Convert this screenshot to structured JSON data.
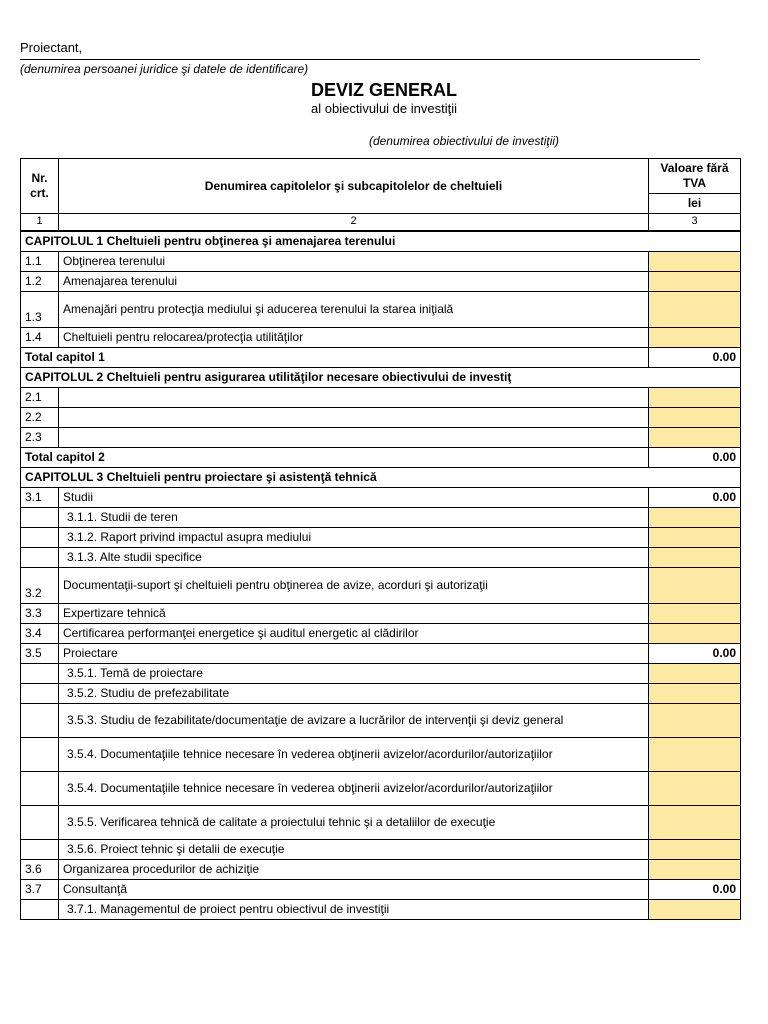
{
  "header": {
    "proiectant": "Proiectant,",
    "identLine": "(denumirea persoanei juridice şi datele de identificare)",
    "title": "DEVIZ GENERAL",
    "titleSub": "al obiectivului de investiţii",
    "objLine": "(denumirea obiectivului de investiţii)"
  },
  "colHeaders": {
    "nr": "Nr. crt.",
    "desc": "Denumirea capitolelor şi subcapitolelor de cheltuieli",
    "valTop": "Valoare fără TVA",
    "valUnit": "lei",
    "n1": "1",
    "n2": "2",
    "n3": "3"
  },
  "colors": {
    "highlight": "#fce9a4",
    "border": "#000000",
    "background": "#ffffff"
  },
  "rows": [
    {
      "type": "chapter",
      "span": "CAPITOLUL 1 Cheltuieli pentru obţinerea şi amenajarea terenului"
    },
    {
      "type": "item",
      "nr": "1.1",
      "desc": "Obţinerea terenului",
      "val": "",
      "yellow": true
    },
    {
      "type": "item",
      "nr": "1.2",
      "desc": "Amenajarea terenului",
      "val": "",
      "yellow": true
    },
    {
      "type": "item",
      "nr": "1.3",
      "desc": "Amenajări pentru protecţia mediului şi aducerea terenului la starea iniţială",
      "val": "",
      "yellow": true,
      "tall": true
    },
    {
      "type": "item",
      "nr": "1.4",
      "desc": "Cheltuieli pentru relocarea/protecţia utilităţilor",
      "val": "",
      "yellow": true
    },
    {
      "type": "total",
      "label": "Total capitol 1",
      "val": "0.00"
    },
    {
      "type": "chapter",
      "span": "CAPITOLUL 2 Cheltuieli pentru asigurarea utilităţilor necesare obiectivului de investiţ"
    },
    {
      "type": "item",
      "nr": "2.1",
      "desc": "",
      "val": "",
      "yellow": true
    },
    {
      "type": "item",
      "nr": "2.2",
      "desc": "",
      "val": "",
      "yellow": true
    },
    {
      "type": "item",
      "nr": "2.3",
      "desc": "",
      "val": "",
      "yellow": true
    },
    {
      "type": "total",
      "label": "Total capitol 2",
      "val": "0.00"
    },
    {
      "type": "chapter",
      "span": "CAPITOLUL 3 Cheltuieli pentru proiectare şi asistenţă tehnică"
    },
    {
      "type": "item",
      "nr": "3.1",
      "desc": "Studii",
      "val": "0.00",
      "valBold": true
    },
    {
      "type": "sub",
      "desc": "3.1.1. Studii de teren",
      "yellow": true
    },
    {
      "type": "sub",
      "desc": "3.1.2. Raport privind impactul asupra mediului",
      "yellow": true
    },
    {
      "type": "sub",
      "desc": "3.1.3. Alte studii specifice",
      "yellow": true
    },
    {
      "type": "item",
      "nr": "3.2",
      "desc": "Documentaţii-suport şi cheltuieli pentru obţinerea de avize, acorduri şi autorizaţii",
      "val": "",
      "yellow": true,
      "tall": true
    },
    {
      "type": "item",
      "nr": "3.3",
      "desc": "Expertizare tehnică",
      "val": "",
      "yellow": true
    },
    {
      "type": "item",
      "nr": "3.4",
      "desc": "Certificarea performanţei energetice şi auditul energetic al clădirilor",
      "val": "",
      "yellow": true
    },
    {
      "type": "item",
      "nr": "3.5",
      "desc": "Proiectare",
      "val": "0.00",
      "valBold": true
    },
    {
      "type": "sub",
      "desc": "3.5.1. Temă de proiectare",
      "yellow": true
    },
    {
      "type": "sub",
      "desc": "3.5.2. Studiu de prefezabilitate",
      "yellow": true
    },
    {
      "type": "sub",
      "desc": "3.5.3. Studiu de fezabilitate/documentaţie de avizare a lucrărilor de intervenţii şi deviz general",
      "yellow": true,
      "tall": true
    },
    {
      "type": "sub",
      "desc": "3.5.4. Documentaţiile tehnice necesare în vederea obţinerii avizelor/acordurilor/autorizaţiilor",
      "yellow": true,
      "tall": true
    },
    {
      "type": "sub",
      "desc": "3.5.4. Documentaţiile tehnice necesare în vederea obţinerii avizelor/acordurilor/autorizaţiilor",
      "yellow": true,
      "tall": true
    },
    {
      "type": "sub",
      "desc": "3.5.5. Verificarea tehnică de calitate a proiectului tehnic şi a detaliilor de execuţie",
      "yellow": true,
      "tall": true
    },
    {
      "type": "sub",
      "desc": "3.5.6. Proiect tehnic şi detalii de execuţie",
      "yellow": true
    },
    {
      "type": "item",
      "nr": "3.6",
      "desc": "Organizarea procedurilor de achiziţie",
      "val": "",
      "yellow": true
    },
    {
      "type": "item",
      "nr": "3.7",
      "desc": "Consultanţă",
      "val": "0.00",
      "valBold": true
    },
    {
      "type": "sub",
      "desc": "3.7.1. Managementul de proiect pentru obiectivul de investiţii",
      "yellow": true
    }
  ]
}
